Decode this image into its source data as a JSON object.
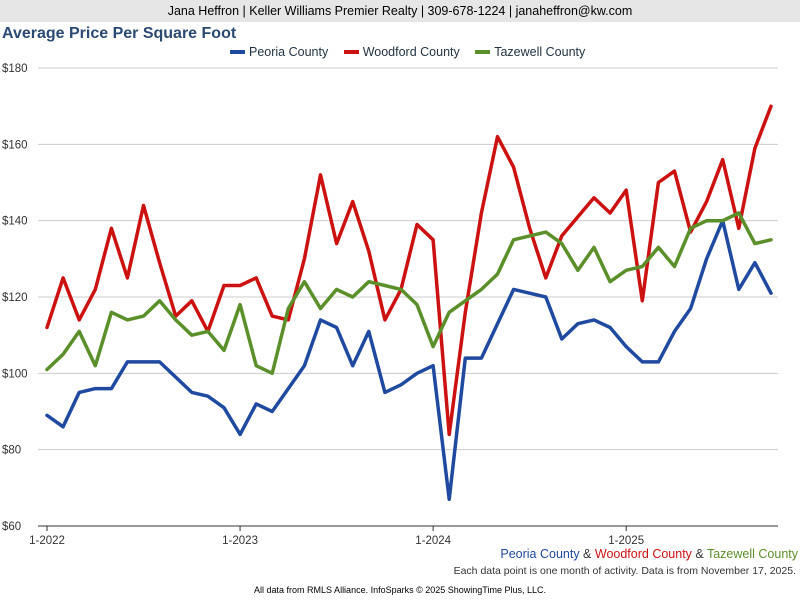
{
  "header": {
    "contact_line": "Jana Heffron | Keller Williams Premier Realty | 309-678-1224 | janaheffron@kw.com"
  },
  "colors": {
    "peoria": "#1f4aa0",
    "woodford": "#cc1111",
    "tazewell": "#5b8f2a",
    "grid": "#cccccc",
    "header_bg": "#e6e6e6"
  },
  "caption": {
    "peoria": "Peoria County",
    "amp1": " & ",
    "woodford": "Woodford County",
    "amp2": " & ",
    "tazewell": "Tazewell County"
  },
  "note": "Each data point is one month of activity. Data is from November 17, 2025.",
  "footer": "All data from RMLS Alliance. InfoSparks © 2025 ShowingTime Plus, LLC.",
  "chart_data": {
    "type": "line",
    "title": "Average Price Per Square Foot",
    "xlabel": "",
    "ylabel": "",
    "ylim": [
      60,
      180
    ],
    "yticks": [
      60,
      80,
      100,
      120,
      140,
      160,
      180
    ],
    "ytick_labels": [
      "$60",
      "$80",
      "$100",
      "$120",
      "$140",
      "$160",
      "$180"
    ],
    "xtick_labels": [
      {
        "index": 0,
        "label": "1-2022"
      },
      {
        "index": 12,
        "label": "1-2023"
      },
      {
        "index": 24,
        "label": "1-2024"
      },
      {
        "index": 36,
        "label": "1-2025"
      }
    ],
    "n_points": 46,
    "legend_position": "top",
    "series": [
      {
        "name": "Peoria County",
        "key": "peoria",
        "values": [
          89,
          86,
          95,
          96,
          96,
          103,
          103,
          103,
          99,
          95,
          94,
          91,
          84,
          92,
          90,
          96,
          102,
          114,
          112,
          102,
          111,
          95,
          97,
          100,
          102,
          67,
          104,
          104,
          113,
          122,
          121,
          120,
          109,
          113,
          114,
          112,
          107,
          103,
          103,
          111,
          117,
          130,
          140,
          122,
          129,
          121
        ]
      },
      {
        "name": "Woodford County",
        "key": "woodford",
        "values": [
          112,
          125,
          114,
          122,
          138,
          125,
          144,
          129,
          115,
          119,
          111,
          123,
          123,
          125,
          115,
          114,
          130,
          152,
          134,
          145,
          132,
          114,
          122,
          139,
          135,
          84,
          116,
          142,
          162,
          154,
          138,
          125,
          136,
          141,
          146,
          142,
          148,
          119,
          150,
          153,
          137,
          145,
          156,
          138,
          159,
          170
        ]
      },
      {
        "name": "Tazewell County",
        "key": "tazewell",
        "values": [
          101,
          105,
          111,
          102,
          116,
          114,
          115,
          119,
          114,
          110,
          111,
          106,
          118,
          102,
          100,
          117,
          124,
          117,
          122,
          120,
          124,
          123,
          122,
          118,
          107,
          116,
          119,
          122,
          126,
          135,
          136,
          137,
          134,
          127,
          133,
          124,
          127,
          128,
          133,
          128,
          138,
          140,
          140,
          142,
          134,
          135
        ]
      }
    ]
  }
}
